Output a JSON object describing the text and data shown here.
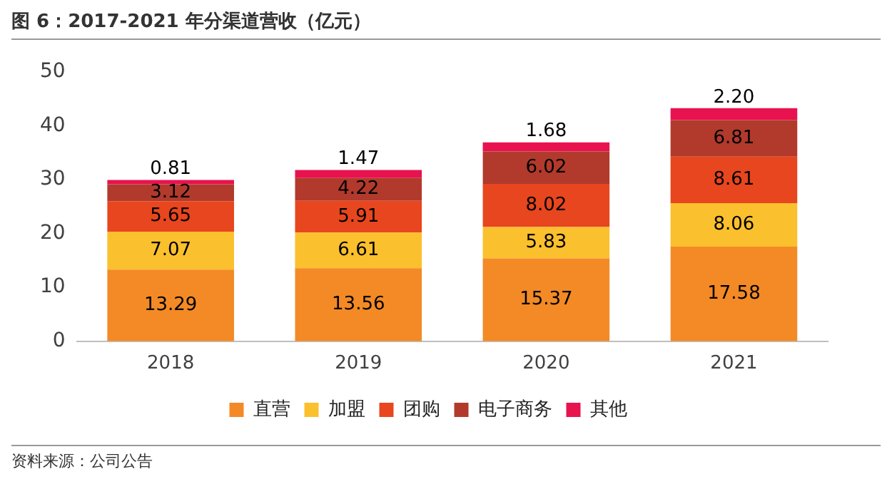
{
  "chart_data": {
    "type": "bar",
    "title": "图 6：2017-2021 年分渠道营收（亿元）",
    "categories": [
      "2018",
      "2019",
      "2020",
      "2021"
    ],
    "series": [
      {
        "name": "直营",
        "color": "#f38a26",
        "values": [
          13.29,
          13.56,
          15.37,
          17.58
        ]
      },
      {
        "name": "加盟",
        "color": "#fbc02d",
        "values": [
          7.07,
          6.61,
          5.83,
          8.06
        ]
      },
      {
        "name": "团购",
        "color": "#e8461e",
        "values": [
          5.65,
          5.91,
          8.02,
          8.61
        ]
      },
      {
        "name": "电子商务",
        "color": "#b13a2c",
        "values": [
          3.12,
          4.22,
          6.02,
          6.81
        ]
      },
      {
        "name": "其他",
        "color": "#e8124f",
        "values": [
          0.81,
          1.47,
          1.68,
          2.2
        ],
        "value_labels": [
          "0.81",
          "1.47",
          "1.68",
          "2.20"
        ]
      }
    ],
    "stacked": true,
    "ylim": [
      0,
      50
    ],
    "yticks": [
      0,
      10,
      20,
      30,
      40,
      50
    ],
    "grid": false,
    "legend": "bottom",
    "data_labels": true,
    "annotations": [
      "资料来源：公司公告"
    ]
  }
}
